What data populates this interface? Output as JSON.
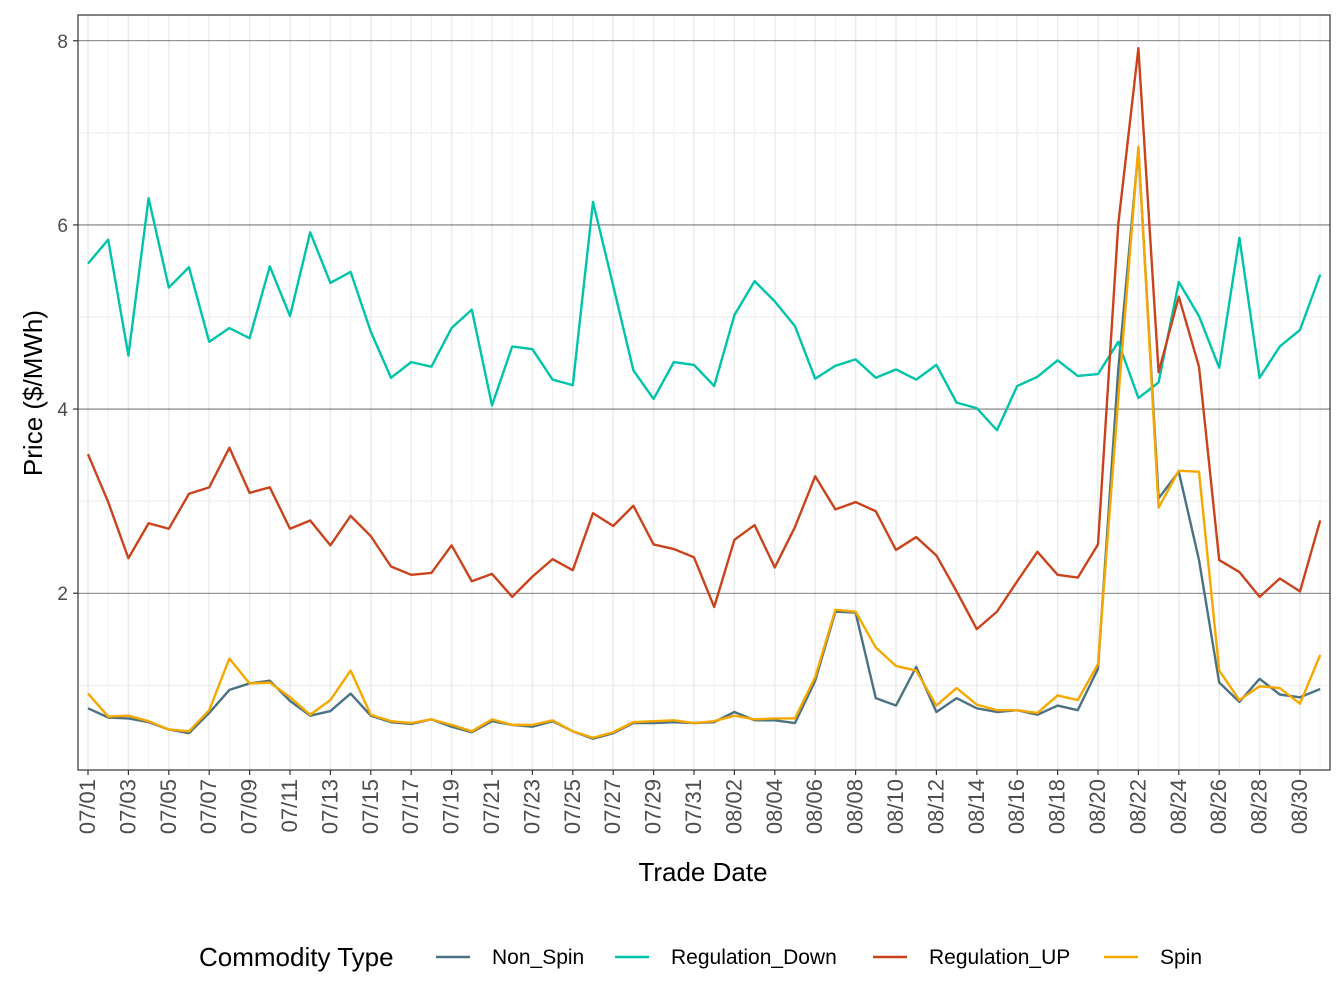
{
  "chart_data": {
    "type": "line",
    "x_label": "Trade Date",
    "y_label": "Price ($/MWh)",
    "legend_title": "Commodity Type",
    "legend": "bottom",
    "grid": true,
    "categories": [
      "07/01",
      null,
      "07/03",
      null,
      "07/05",
      null,
      "07/07",
      null,
      "07/09",
      null,
      "07/11",
      null,
      "07/13",
      null,
      "07/15",
      null,
      "07/17",
      null,
      "07/19",
      null,
      "07/21",
      null,
      "07/23",
      null,
      "07/25",
      null,
      "07/27",
      null,
      "07/29",
      null,
      "07/31",
      null,
      "08/02",
      null,
      "08/04",
      null,
      "08/06",
      null,
      "08/08",
      null,
      "08/10",
      null,
      "08/12",
      null,
      "08/14",
      null,
      "08/16",
      null,
      "08/18",
      null,
      "08/20",
      null,
      "08/22",
      null,
      "08/24",
      null,
      "08/26",
      null,
      "08/28",
      null,
      "08/30",
      null
    ],
    "ylim": [
      0.08,
      8.28
    ],
    "yticks": [
      2,
      4,
      6,
      8
    ],
    "series": [
      {
        "name": "Non_Spin",
        "color": "#4b7282",
        "values": [
          0.75,
          0.65,
          0.64,
          0.6,
          0.52,
          0.48,
          0.7,
          0.95,
          1.02,
          1.05,
          0.83,
          0.67,
          0.72,
          0.91,
          0.67,
          0.6,
          0.58,
          0.63,
          0.55,
          0.49,
          0.61,
          0.57,
          0.55,
          0.61,
          0.5,
          0.42,
          0.48,
          0.59,
          0.59,
          0.6,
          0.59,
          0.6,
          0.71,
          0.62,
          0.62,
          0.59,
          1.05,
          1.8,
          1.79,
          0.86,
          0.78,
          1.2,
          0.71,
          0.86,
          0.75,
          0.71,
          0.73,
          0.68,
          0.78,
          0.73,
          1.18,
          4.42,
          6.82,
          3.03,
          3.32,
          2.36,
          1.03,
          0.82,
          1.07,
          0.9,
          0.87,
          0.96
        ]
      },
      {
        "name": "Regulation_Down",
        "color": "#00c4a9",
        "values": [
          5.58,
          5.84,
          4.58,
          6.29,
          5.32,
          5.54,
          4.73,
          4.88,
          4.77,
          5.55,
          5.01,
          5.92,
          5.37,
          5.49,
          4.84,
          4.34,
          4.51,
          4.46,
          4.88,
          5.08,
          4.04,
          4.68,
          4.65,
          4.32,
          4.26,
          6.25,
          5.34,
          4.42,
          4.11,
          4.51,
          4.48,
          4.25,
          5.02,
          5.39,
          5.17,
          4.9,
          4.33,
          4.47,
          4.54,
          4.34,
          4.43,
          4.32,
          4.48,
          4.07,
          4.01,
          3.77,
          4.25,
          4.35,
          4.53,
          4.36,
          4.38,
          4.73,
          4.12,
          4.29,
          5.38,
          5.01,
          4.45,
          5.86,
          4.34,
          4.68,
          4.86,
          5.46
        ]
      },
      {
        "name": "Regulation_UP",
        "color": "#c9431d",
        "values": [
          3.51,
          2.99,
          2.38,
          2.76,
          2.7,
          3.08,
          3.15,
          3.58,
          3.09,
          3.15,
          2.7,
          2.79,
          2.52,
          2.84,
          2.62,
          2.29,
          2.2,
          2.22,
          2.52,
          2.13,
          2.21,
          1.96,
          2.18,
          2.37,
          2.25,
          2.87,
          2.73,
          2.95,
          2.53,
          2.48,
          2.39,
          1.85,
          2.58,
          2.74,
          2.28,
          2.72,
          3.27,
          2.91,
          2.99,
          2.89,
          2.47,
          2.61,
          2.41,
          2.02,
          1.61,
          1.8,
          2.13,
          2.45,
          2.2,
          2.17,
          2.53,
          6.0,
          7.92,
          4.4,
          5.22,
          4.46,
          2.36,
          2.23,
          1.96,
          2.16,
          2.02,
          2.79
        ]
      },
      {
        "name": "Spin",
        "color": "#f5a800",
        "values": [
          0.91,
          0.66,
          0.67,
          0.61,
          0.52,
          0.5,
          0.73,
          1.29,
          1.02,
          1.03,
          0.87,
          0.68,
          0.84,
          1.16,
          0.68,
          0.61,
          0.59,
          0.63,
          0.57,
          0.5,
          0.63,
          0.57,
          0.57,
          0.62,
          0.5,
          0.43,
          0.49,
          0.6,
          0.61,
          0.62,
          0.59,
          0.61,
          0.67,
          0.63,
          0.64,
          0.64,
          1.09,
          1.82,
          1.8,
          1.41,
          1.21,
          1.16,
          0.78,
          0.97,
          0.79,
          0.73,
          0.73,
          0.7,
          0.89,
          0.84,
          1.23,
          4.1,
          6.85,
          2.93,
          3.33,
          3.32,
          1.16,
          0.84,
          0.99,
          0.97,
          0.8,
          1.33
        ]
      }
    ]
  }
}
